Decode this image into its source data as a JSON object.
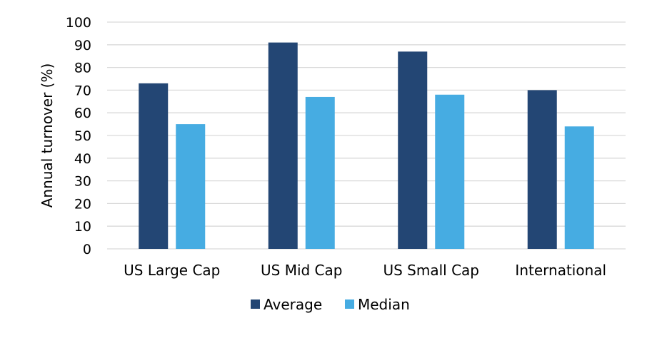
{
  "chart_data": {
    "type": "bar",
    "title": "",
    "xlabel": "",
    "ylabel": "Annual turnover (%)",
    "categories": [
      "US Large Cap",
      "US Mid Cap",
      "US Small Cap",
      "International"
    ],
    "series": [
      {
        "name": "Average",
        "color": "#234674",
        "values": [
          73,
          91,
          87,
          70
        ]
      },
      {
        "name": "Median",
        "color": "#46ACE2",
        "values": [
          55,
          67,
          68,
          54
        ]
      }
    ],
    "ylim": [
      0,
      100
    ],
    "yticks": [
      0,
      10,
      20,
      30,
      40,
      50,
      60,
      70,
      80,
      90,
      100
    ],
    "grid": true,
    "legend_position": "bottom"
  }
}
